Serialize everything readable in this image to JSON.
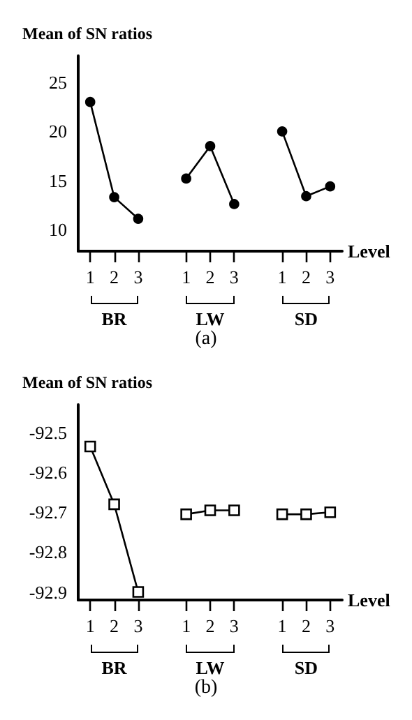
{
  "chart_data": [
    {
      "type": "line",
      "ylabel": "Mean of SN ratios",
      "xlabel": "Level",
      "marker": "circle",
      "categories": [
        "1",
        "2",
        "3",
        null,
        "1",
        "2",
        "3",
        null,
        "1",
        "2",
        "3"
      ],
      "series": [
        {
          "color": "#000000",
          "values": [
            23.0,
            13.3,
            11.1,
            null,
            null,
            null,
            null,
            null,
            null,
            null,
            null
          ]
        },
        {
          "color": "#000000",
          "values": [
            null,
            null,
            null,
            null,
            15.2,
            18.5,
            12.6,
            null,
            null,
            null,
            null
          ]
        },
        {
          "color": "#000000",
          "values": [
            null,
            null,
            null,
            null,
            null,
            null,
            null,
            null,
            20.0,
            13.4,
            14.4
          ]
        }
      ],
      "ylim": [
        7.8,
        27.7
      ],
      "yticks": [
        10,
        15,
        20,
        25
      ],
      "annotations": [
        "BR",
        "LW",
        "SD",
        "(a)"
      ]
    },
    {
      "type": "line",
      "ylabel": "Mean of SN ratios",
      "xlabel": "Level",
      "marker": "square",
      "categories": [
        "1",
        "2",
        "3",
        null,
        "1",
        "2",
        "3",
        null,
        "1",
        "2",
        "3"
      ],
      "series": [
        {
          "color": "#000000",
          "values": [
            -92.535,
            -92.68,
            -92.9,
            null,
            null,
            null,
            null,
            null,
            null,
            null,
            null
          ]
        },
        {
          "color": "#000000",
          "values": [
            null,
            null,
            null,
            null,
            -92.705,
            -92.695,
            -92.695,
            null,
            null,
            null,
            null
          ]
        },
        {
          "color": "#000000",
          "values": [
            null,
            null,
            null,
            null,
            null,
            null,
            null,
            null,
            -92.705,
            -92.705,
            -92.7
          ]
        }
      ],
      "ylim": [
        -92.92,
        -92.43
      ],
      "yticks": [
        -92.5,
        -92.6,
        -92.7,
        -92.8,
        -92.9
      ],
      "annotations": [
        "BR",
        "LW",
        "SD",
        "(b)"
      ]
    }
  ]
}
